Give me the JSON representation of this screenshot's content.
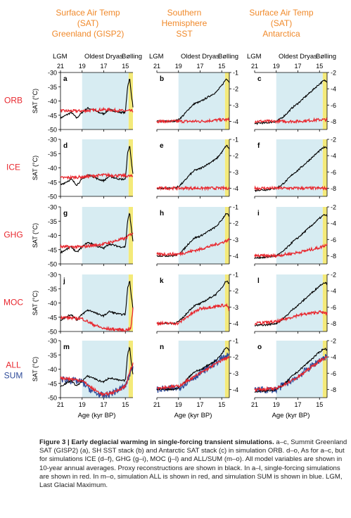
{
  "colors": {
    "model": "#e8282f",
    "sum": "#2f4c9a",
    "proxy": "#000000",
    "column_title": "#f0892a",
    "row_label": "#e8282f",
    "sum_label": "#2f4c9a",
    "odr_band": "#d7ecf2",
    "bolling_band": "#f4ea7a"
  },
  "column_titles": [
    [
      "Surface Air Temp",
      "(SAT)",
      "Greenland (GISP2)"
    ],
    [
      "Southern",
      "Hemisphere",
      "SST"
    ],
    [
      "Surface Air Temp",
      "(SAT)",
      "Antarctica"
    ]
  ],
  "period_labels": [
    "LGM",
    "Oldest Dryas",
    "Bølling"
  ],
  "top_tick_labels": [
    "21",
    "19",
    "17",
    "15"
  ],
  "row_labels": [
    "ORB",
    "ICE",
    "GHG",
    "MOC",
    "ALL"
  ],
  "sum_label": "SUM",
  "ylabel": "SAT (°C)",
  "xlabel": "Age (kyr BP)",
  "caption": {
    "title": "Figure 3 | Early deglacial warming in single-forcing transient simulations.",
    "body": "a–c, Summit Greenland SAT (GISP2) (a), SH SST stack (b) and Antarctic SAT stack (c) in simulation ORB. d–o, As for a–c, but for simulations ICE (d–f), GHG (g–i), MOC (j–l) and ALL/SUM (m–o). All model variables are shown in 10-year annual averages. Proxy reconstructions are shown in black. In a–l, single-forcing simulations are shown in red. In m–o, simulation ALL is shown in red, and simulation SUM is shown in blue. LGM, Last Glacial Maximum."
  },
  "chart_data": {
    "type": "line",
    "x_label": "Age (kyr BP)",
    "xlim": [
      21,
      14.3
    ],
    "x_ticks": [
      21,
      19,
      17,
      15
    ],
    "shaded_periods": [
      {
        "label": "Oldest Dryas",
        "from": 19,
        "to": 14.7
      },
      {
        "label": "Bølling",
        "from": 14.7,
        "to": 14.3
      }
    ],
    "columns": [
      {
        "ylabel": "SAT (°C)",
        "ylim": [
          -50,
          -30
        ],
        "y_ticks": [
          -50,
          -45,
          -40,
          -35,
          -30
        ],
        "tick_side": "left"
      },
      {
        "ylim": [
          -4.5,
          -1
        ],
        "y_ticks": [
          -4,
          -3,
          -2,
          -1
        ],
        "tick_side": "right"
      },
      {
        "ylim": [
          -9,
          -2
        ],
        "y_ticks": [
          -8,
          -6,
          -4,
          -2
        ],
        "tick_side": "right"
      }
    ],
    "proxy_x": [
      21,
      20.5,
      20,
      19.5,
      19,
      18.5,
      18,
      17.5,
      17,
      16.5,
      16,
      15.5,
      15,
      14.8,
      14.6,
      14.5,
      14.3
    ],
    "proxy": [
      [
        -46,
        -45,
        -44,
        -46,
        -44,
        -42.5,
        -43,
        -44,
        -44.5,
        -43,
        -43.5,
        -44,
        -44,
        -35,
        -32,
        -36,
        -42
      ],
      [
        -4,
        -4,
        -4,
        -4,
        -3.9,
        -3.6,
        -3.2,
        -2.9,
        -2.8,
        -2.6,
        -2.4,
        -2.2,
        -1.8,
        -1.6,
        -1.4,
        -1.4,
        -1.6
      ],
      [
        -8.3,
        -8.2,
        -8.2,
        -8.1,
        -8,
        -7.6,
        -7,
        -6.3,
        -5.8,
        -5.2,
        -4.6,
        -4,
        -3.4,
        -3.2,
        -3,
        -3,
        -3.1
      ]
    ],
    "rows": [
      {
        "label": "ORB",
        "panels": [
          {
            "letter": "a",
            "model_x": [
              21,
              19,
              17,
              15,
              14.3
            ],
            "model": [
              -43.5,
              -43.5,
              -43,
              -43.5,
              -43.5
            ]
          },
          {
            "letter": "b",
            "model_x": [
              21,
              19,
              17,
              15,
              14.3
            ],
            "model": [
              -4,
              -4,
              -4,
              -3.9,
              -3.9
            ]
          },
          {
            "letter": "c",
            "model_x": [
              21,
              19,
              17,
              15,
              14.3
            ],
            "model": [
              -8,
              -8,
              -8,
              -7.8,
              -7.8
            ]
          }
        ]
      },
      {
        "label": "ICE",
        "panels": [
          {
            "letter": "d",
            "model_x": [
              21,
              19,
              17,
              15,
              14.3
            ],
            "model": [
              -43.5,
              -43.2,
              -42.5,
              -42.8,
              -43
            ]
          },
          {
            "letter": "e",
            "model_x": [
              21,
              19,
              17,
              15,
              14.3
            ],
            "model": [
              -4,
              -4,
              -4,
              -4,
              -4
            ]
          },
          {
            "letter": "f",
            "model_x": [
              21,
              19,
              17,
              15,
              14.3
            ],
            "model": [
              -8,
              -8,
              -8,
              -8,
              -8
            ]
          }
        ]
      },
      {
        "label": "GHG",
        "panels": [
          {
            "letter": "g",
            "model_x": [
              21,
              19,
              17,
              15,
              14.3
            ],
            "model": [
              -44,
              -44,
              -43,
              -41,
              -39
            ]
          },
          {
            "letter": "h",
            "model_x": [
              21,
              19,
              17,
              15,
              14.3
            ],
            "model": [
              -3.9,
              -3.9,
              -3.6,
              -3.2,
              -3
            ]
          },
          {
            "letter": "i",
            "model_x": [
              21,
              19,
              17,
              15,
              14.3
            ],
            "model": [
              -8,
              -8,
              -7.6,
              -7,
              -6.6
            ]
          }
        ]
      },
      {
        "label": "MOC",
        "panels": [
          {
            "letter": "j",
            "model_x": [
              21,
              19,
              18,
              17,
              15,
              14.5,
              14.3
            ],
            "model": [
              -45,
              -45.5,
              -47.5,
              -49,
              -49.5,
              -49,
              -42
            ]
          },
          {
            "letter": "k",
            "model_x": [
              21,
              19,
              18,
              17,
              15,
              14.5,
              14.3
            ],
            "model": [
              -4,
              -4,
              -3.5,
              -3.1,
              -2.9,
              -2.9,
              -3.2
            ]
          },
          {
            "letter": "l",
            "model_x": [
              21,
              19,
              17,
              15,
              14.3
            ],
            "model": [
              -8,
              -7.8,
              -7,
              -6.6,
              -6.8
            ]
          }
        ]
      },
      {
        "label": "ALL",
        "sum_label": "SUM",
        "panels": [
          {
            "letter": "m",
            "model_x": [
              21,
              19,
              18,
              17,
              16,
              15,
              14.5,
              14.3
            ],
            "model": [
              -43,
              -44,
              -47,
              -49,
              -48,
              -46,
              -40,
              -38
            ],
            "sum_x": [
              21,
              19,
              18,
              17,
              16,
              15,
              14.5,
              14.3
            ],
            "sum": [
              -43.5,
              -44.5,
              -48,
              -49.5,
              -48,
              -46,
              -41,
              -39
            ]
          },
          {
            "letter": "n",
            "model_x": [
              21,
              19,
              17,
              15,
              14.3
            ],
            "model": [
              -3.9,
              -3.8,
              -3,
              -2.2,
              -2
            ],
            "sum_x": [
              21,
              19,
              17,
              15,
              14.3
            ],
            "sum": [
              -4,
              -3.9,
              -3,
              -2.1,
              -1.9
            ]
          },
          {
            "letter": "o",
            "model_x": [
              21,
              19,
              17,
              15,
              14.3
            ],
            "model": [
              -8,
              -7.9,
              -6.5,
              -4.5,
              -4
            ],
            "sum_x": [
              21,
              19,
              17,
              15,
              14.3
            ],
            "sum": [
              -8.1,
              -8,
              -6.4,
              -4.4,
              -3.9
            ]
          }
        ]
      }
    ]
  }
}
